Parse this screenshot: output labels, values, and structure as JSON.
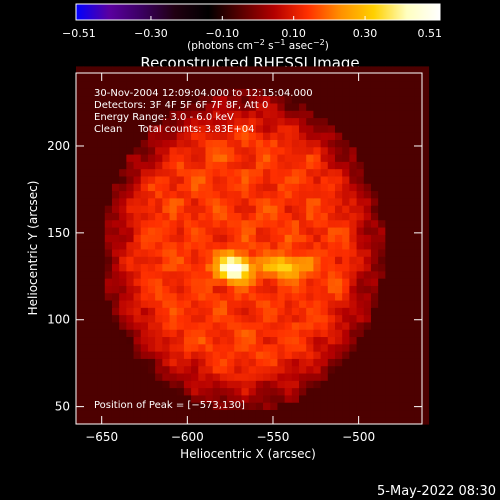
{
  "colorbar": {
    "min": -0.51,
    "max": 0.51,
    "tick_labels": [
      "−0.51",
      "−0.30",
      "−0.10",
      "0.10",
      "0.30",
      "0.51"
    ],
    "tick_values": [
      -0.51,
      -0.3,
      -0.1,
      0.1,
      0.3,
      0.51
    ],
    "units_parts": [
      "(photons cm",
      "−2",
      " s",
      "−1",
      " asec",
      "−2",
      ")"
    ],
    "colors": [
      "#0000ff",
      "#5a00a0",
      "#3a0060",
      "#200010",
      "#000000",
      "#5a0000",
      "#b40000",
      "#ff3000",
      "#ff9000",
      "#ffd000",
      "#ffffc0",
      "#ffffff"
    ]
  },
  "chart_data": {
    "type": "heatmap",
    "title": "Reconstructed RHESSI Image",
    "xlabel": "Heliocentric X (arcsec)",
    "ylabel": "Heliocentric Y (arcsec)",
    "xlim": [
      -665,
      -463
    ],
    "ylim": [
      40,
      242
    ],
    "x_ticks": [
      -650,
      -600,
      -550,
      -500
    ],
    "y_ticks": [
      50,
      100,
      150,
      200
    ],
    "x_tick_labels": [
      "−650",
      "−600",
      "−550",
      "−500"
    ],
    "y_tick_labels": [
      "50",
      "100",
      "150",
      "200"
    ],
    "annotations": [
      "30-Nov-2004 12:09:04.000 to 12:15:04.000",
      "Detectors: 3F 4F 5F 6F 7F 8F, Att 0",
      "Energy Range: 3.0 - 6.0 keV",
      "Clean     Total counts: 3.83E+04"
    ],
    "peak_label": "Position of Peak = [−573,130]",
    "peak": {
      "x": -573,
      "y": 130,
      "value": 0.51
    },
    "secondary_source": {
      "x": -543,
      "y": 131,
      "value": 0.36
    },
    "disk_region": {
      "x_range": [
        -650,
        -485
      ],
      "y_range": [
        48,
        232
      ],
      "level": 0.14
    }
  },
  "footer": {
    "date": "5-May-2022 08:30"
  }
}
